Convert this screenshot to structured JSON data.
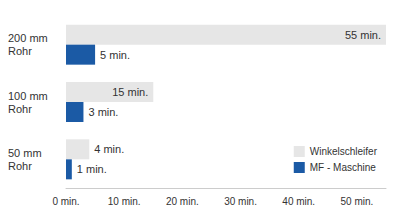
{
  "chart_data": {
    "type": "bar",
    "orientation": "horizontal",
    "categories": [
      "200 mm Rohr",
      "100 mm Rohr",
      "50 mm Rohr"
    ],
    "series": [
      {
        "name": "Winkelschleifer",
        "color": "#e6e6e6",
        "values": [
          55,
          15,
          4
        ],
        "value_labels": [
          "55 min.",
          "15 min.",
          "4 min."
        ]
      },
      {
        "name": "MF - Maschine",
        "color": "#1b5aa5",
        "values": [
          5,
          3,
          1
        ],
        "value_labels": [
          "5 min.",
          "3 min.",
          "1 min."
        ]
      }
    ],
    "xlim": [
      0,
      55
    ],
    "xticks": [
      {
        "value": 0,
        "label": "0 min."
      },
      {
        "value": 10,
        "label": "10 min."
      },
      {
        "value": 20,
        "label": "20 min."
      },
      {
        "value": 30,
        "label": "30 min."
      },
      {
        "value": 40,
        "label": "40 min."
      },
      {
        "value": 50,
        "label": "50 min."
      }
    ],
    "grid": false,
    "legend": "lower right",
    "data_labels": true
  }
}
